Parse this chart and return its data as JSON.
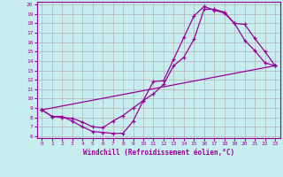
{
  "xlabel": "Windchill (Refroidissement éolien,°C)",
  "bg_color": "#c8edee",
  "grid_color": "#b0b0b0",
  "line_color": "#990099",
  "xlim": [
    -0.5,
    23.5
  ],
  "ylim": [
    5.8,
    20.3
  ],
  "xticks": [
    0,
    1,
    2,
    3,
    4,
    5,
    6,
    7,
    8,
    9,
    10,
    11,
    12,
    13,
    14,
    15,
    16,
    17,
    18,
    19,
    20,
    21,
    22,
    23
  ],
  "yticks": [
    6,
    7,
    8,
    9,
    10,
    11,
    12,
    13,
    14,
    15,
    16,
    17,
    18,
    19,
    20
  ],
  "line1_x": [
    0,
    1,
    2,
    3,
    4,
    5,
    6,
    7,
    8,
    9,
    10,
    11,
    12,
    13,
    14,
    15,
    16,
    17,
    18,
    19,
    20,
    21,
    22,
    23
  ],
  "line1_y": [
    8.8,
    8.1,
    8.1,
    7.6,
    7.0,
    6.5,
    6.4,
    6.3,
    6.3,
    7.6,
    9.8,
    11.8,
    11.9,
    14.2,
    16.5,
    18.8,
    19.8,
    19.4,
    19.1,
    18.0,
    16.2,
    15.1,
    13.8,
    13.5
  ],
  "line2_x": [
    0,
    1,
    2,
    3,
    4,
    5,
    6,
    7,
    8,
    9,
    10,
    11,
    12,
    13,
    14,
    15,
    16,
    17,
    18,
    19,
    20,
    21,
    22,
    23
  ],
  "line2_y": [
    8.8,
    8.1,
    8.0,
    7.9,
    7.5,
    7.0,
    6.9,
    7.6,
    8.2,
    9.0,
    9.8,
    10.5,
    11.5,
    13.5,
    14.4,
    16.3,
    19.5,
    19.5,
    19.2,
    18.0,
    17.9,
    16.4,
    15.0,
    13.5
  ],
  "line3_x": [
    0,
    23
  ],
  "line3_y": [
    8.8,
    13.5
  ]
}
